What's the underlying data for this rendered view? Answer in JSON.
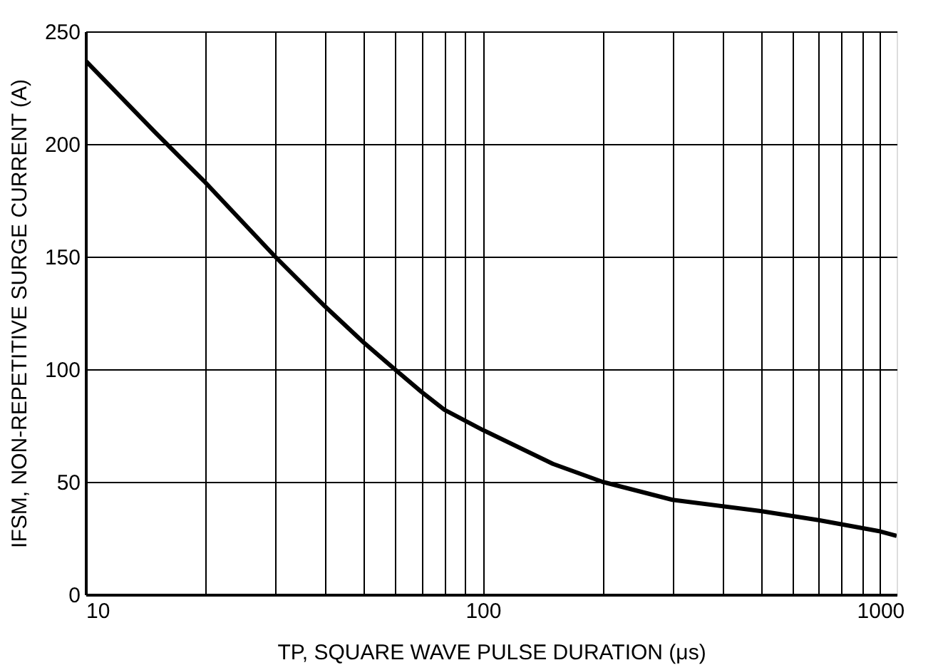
{
  "chart_data": {
    "type": "line",
    "xlabel": "TP, SQUARE WAVE PULSE DURATION (μs)",
    "ylabel": "IFSM, NON-REPETITIVE SURGE CURRENT (A)",
    "log": "x",
    "grid": true,
    "line_style": "solid",
    "xlim": [
      10,
      1100
    ],
    "ylim": [
      0,
      250
    ],
    "xticks": [
      10,
      {
        "value": 20,
        "label": null
      },
      {
        "value": 30,
        "label": null
      },
      {
        "value": 40,
        "label": null
      },
      {
        "value": 50,
        "label": null
      },
      {
        "value": 60,
        "label": null
      },
      {
        "value": 70,
        "label": null
      },
      {
        "value": 80,
        "label": null
      },
      {
        "value": 90,
        "label": null
      },
      100,
      {
        "value": 200,
        "label": null
      },
      {
        "value": 300,
        "label": null
      },
      {
        "value": 400,
        "label": null
      },
      {
        "value": 500,
        "label": null
      },
      {
        "value": 600,
        "label": null
      },
      {
        "value": 700,
        "label": null
      },
      {
        "value": 800,
        "label": null
      },
      {
        "value": 900,
        "label": null
      },
      1000
    ],
    "yticks": [
      0,
      50,
      100,
      150,
      200,
      250
    ],
    "series": [
      {
        "color": "#000000",
        "x": [
          10,
          15,
          20,
          30,
          40,
          50,
          60,
          70,
          80,
          100,
          150,
          200,
          300,
          500,
          700,
          1000,
          1100
        ],
        "values": [
          237,
          205,
          183,
          150,
          128,
          112,
          100,
          90,
          82,
          73,
          58,
          50,
          42,
          37,
          33,
          28,
          26
        ]
      }
    ]
  }
}
